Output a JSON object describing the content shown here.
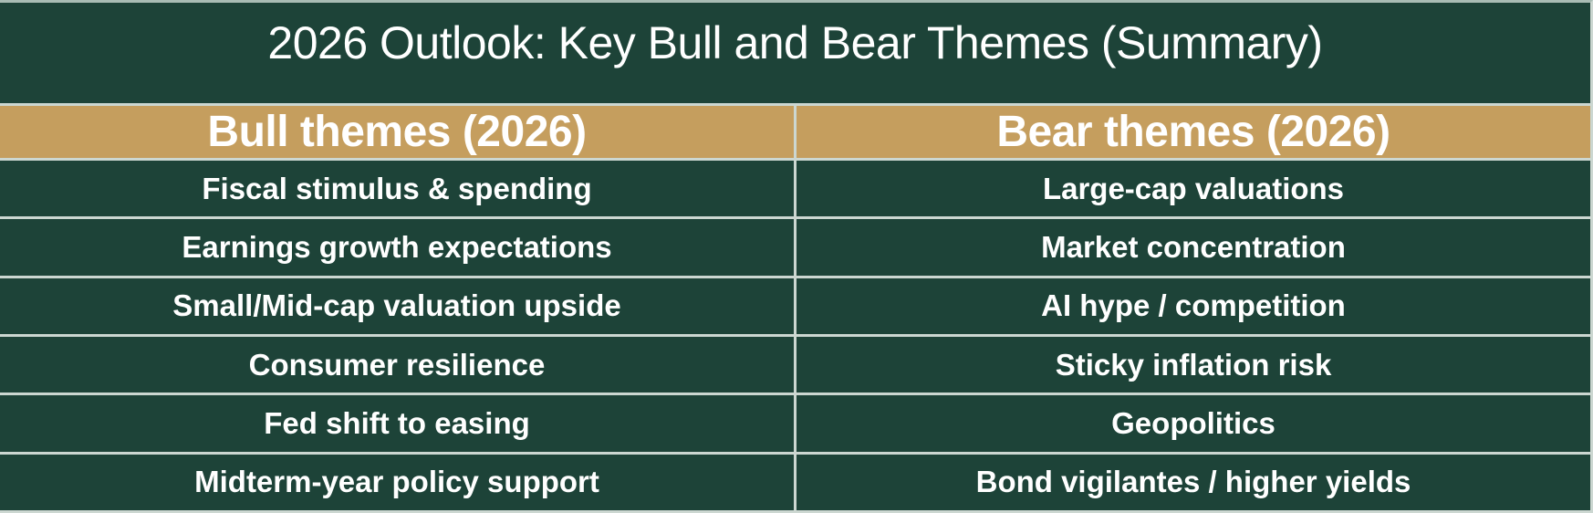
{
  "title": "2026 Outlook: Key Bull and Bear Themes (Summary)",
  "table": {
    "columns": [
      {
        "header": "Bull themes (2026)",
        "rows": [
          "Fiscal stimulus & spending",
          "Earnings growth expectations",
          "Small/Mid-cap valuation upside",
          "Consumer resilience",
          "Fed shift to easing",
          "Midterm-year policy support"
        ]
      },
      {
        "header": "Bear themes (2026)",
        "rows": [
          "Large-cap valuations",
          "Market concentration",
          "AI hype / competition",
          "Sticky inflation risk",
          "Geopolitics",
          "Bond vigilantes / higher yields"
        ]
      }
    ]
  },
  "colors": {
    "background_green": "#1d4338",
    "header_gold": "#c59e5e",
    "grid_line": "#ccd7d1",
    "text": "#ffffff"
  }
}
